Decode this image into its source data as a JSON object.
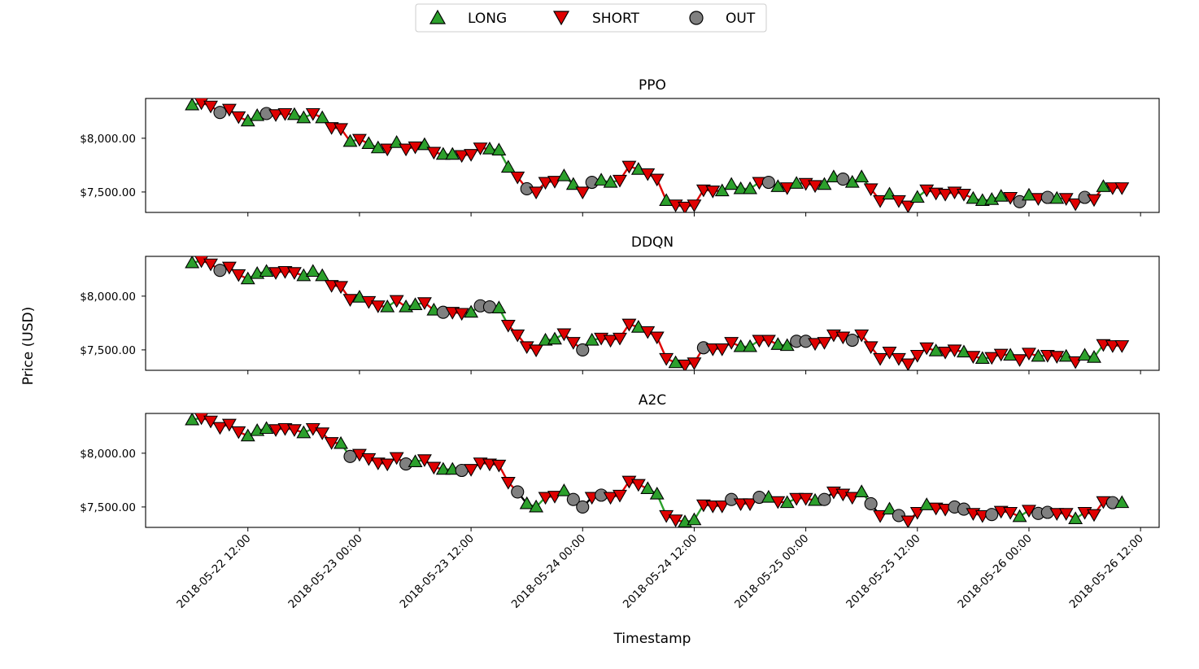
{
  "chart_data": {
    "type": "scatter",
    "ylabel": "Price (USD)",
    "xlabel": "Timestamp",
    "ylim": [
      7310,
      8370
    ],
    "yticks": [
      {
        "value": 8000,
        "label": "$8,000.00"
      },
      {
        "value": 7500,
        "label": "$7,500.00"
      }
    ],
    "xlim_hours": [
      -11,
      98
    ],
    "xticks": [
      {
        "hour": 0,
        "label": "2018-05-22 12:00"
      },
      {
        "hour": 12,
        "label": "2018-05-23 00:00"
      },
      {
        "hour": 24,
        "label": "2018-05-23 12:00"
      },
      {
        "hour": 36,
        "label": "2018-05-24 00:00"
      },
      {
        "hour": 48,
        "label": "2018-05-24 12:00"
      },
      {
        "hour": 60,
        "label": "2018-05-25 00:00"
      },
      {
        "hour": 72,
        "label": "2018-05-25 12:00"
      },
      {
        "hour": 84,
        "label": "2018-05-26 00:00"
      },
      {
        "hour": 96,
        "label": "2018-05-26 12:00"
      }
    ],
    "x_start_hour": -6,
    "x_step_hours": 1,
    "prices": [
      8310,
      8330,
      8300,
      8240,
      8270,
      8200,
      8160,
      8210,
      8230,
      8220,
      8230,
      8220,
      8190,
      8230,
      8190,
      8100,
      8090,
      7970,
      7990,
      7950,
      7910,
      7900,
      7960,
      7900,
      7920,
      7940,
      7870,
      7850,
      7850,
      7840,
      7850,
      7910,
      7900,
      7890,
      7730,
      7640,
      7530,
      7500,
      7590,
      7600,
      7650,
      7570,
      7500,
      7590,
      7610,
      7590,
      7610,
      7740,
      7710,
      7670,
      7620,
      7420,
      7380,
      7360,
      7380,
      7520,
      7510,
      7510,
      7570,
      7530,
      7530,
      7590,
      7590,
      7550,
      7540,
      7580,
      7580,
      7560,
      7570,
      7640,
      7620,
      7590,
      7640,
      7530,
      7420,
      7480,
      7420,
      7370,
      7450,
      7520,
      7490,
      7480,
      7500,
      7480,
      7440,
      7420,
      7430,
      7460,
      7450,
      7410,
      7470,
      7440,
      7450,
      7440,
      7440,
      7390,
      7450,
      7430,
      7550,
      7540,
      7540
    ],
    "legend": {
      "position": "top-center",
      "entries": [
        {
          "key": "long",
          "label": "LONG",
          "color": "#2ca02c"
        },
        {
          "key": "short",
          "label": "SHORT",
          "color": "#e00000"
        },
        {
          "key": "out",
          "label": "OUT",
          "color": "#808080"
        }
      ]
    },
    "line_colors": {
      "long": "#2ca02c",
      "short": "#e00000",
      "out": "#000000"
    },
    "panels": [
      {
        "title": "PPO",
        "actions": "LSSOSSLLOSSLLSLSSLSLLSLSSLSLLSSSLLLSOSSSLLSOLLSSLSSLSSSSSLLLLSOLSLSSLLOLLSSLSSLSSSSSLLLLSOLSOLSSOSLSSLSSLSSOSSLSSSLSSOSSLSSSSLSSSLSSLSLSLL"
      },
      {
        "title": "DDQN",
        "actions": "LSSOSSLLLSSSLLLSSSLSSLSLLSLOSSLOOLSSSSLLSSOLSSSSLSSSLSSOSSSLLSSLLOOSSSSOSSSSSSSSLSSLSLSSLSSLSSLSLLSSSSLSSSLSSLLSLSSLSSSLSSSLSSLLSSLSSSLS"
      },
      {
        "title": "A2C",
        "actions": "LSSSSSLLLSSSLSSSLOSSSSSOLSSLLOSSSSSOLLSSLOOSOSSSSLLSSLLSSSOSSOLSLSSLOSSSLOSLOSSLSSOOSSOSSLSOOSSLSSSOLS"
      }
    ]
  }
}
